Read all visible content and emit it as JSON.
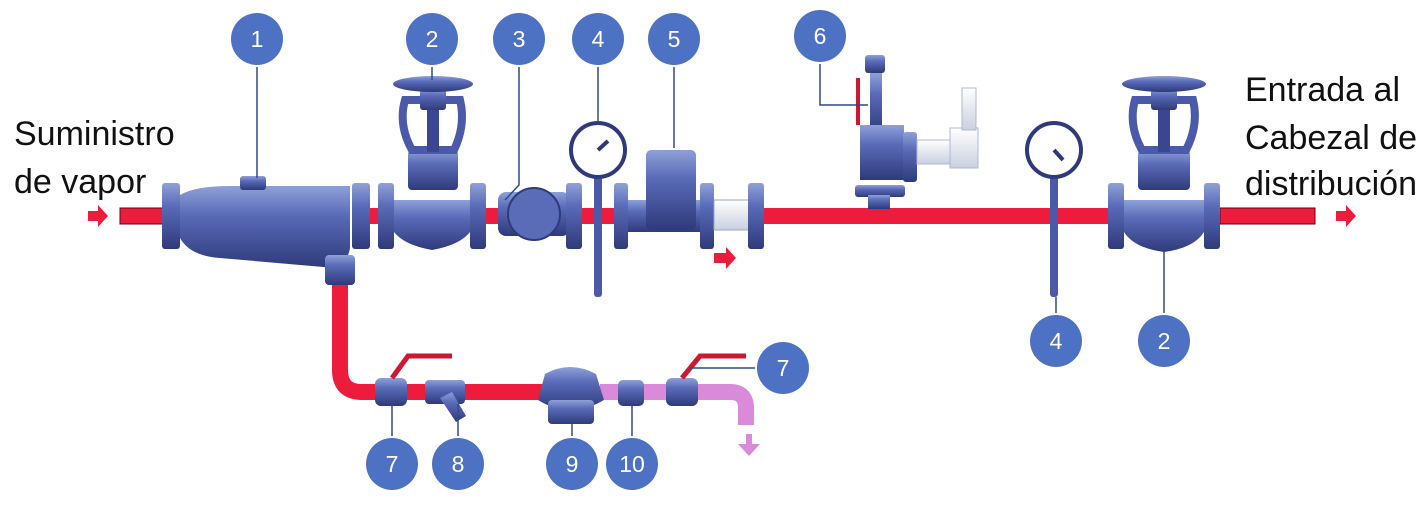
{
  "labels": {
    "inlet_line1": "Suministro",
    "inlet_line2": "de vapor",
    "outlet_line1": "Entrada al",
    "outlet_line2": "Cabezal de",
    "outlet_line3": "distribución"
  },
  "callouts": [
    {
      "id": "c1",
      "text": "1"
    },
    {
      "id": "c2a",
      "text": "2"
    },
    {
      "id": "c3",
      "text": "3"
    },
    {
      "id": "c4a",
      "text": "4"
    },
    {
      "id": "c5",
      "text": "5"
    },
    {
      "id": "c6",
      "text": "6"
    },
    {
      "id": "c7a",
      "text": "7"
    },
    {
      "id": "c4b",
      "text": "4"
    },
    {
      "id": "c2b",
      "text": "2"
    },
    {
      "id": "c7b",
      "text": "7"
    },
    {
      "id": "c8",
      "text": "8"
    },
    {
      "id": "c9",
      "text": "9"
    },
    {
      "id": "c10",
      "text": "10"
    }
  ],
  "colors": {
    "steam_pipe": "#ee1c3c",
    "condensate_pipe": "#d98ad9",
    "equipment_body": "#4a5aa8",
    "callout_fill": "#4d72c4",
    "callout_text": "#ffffff"
  }
}
